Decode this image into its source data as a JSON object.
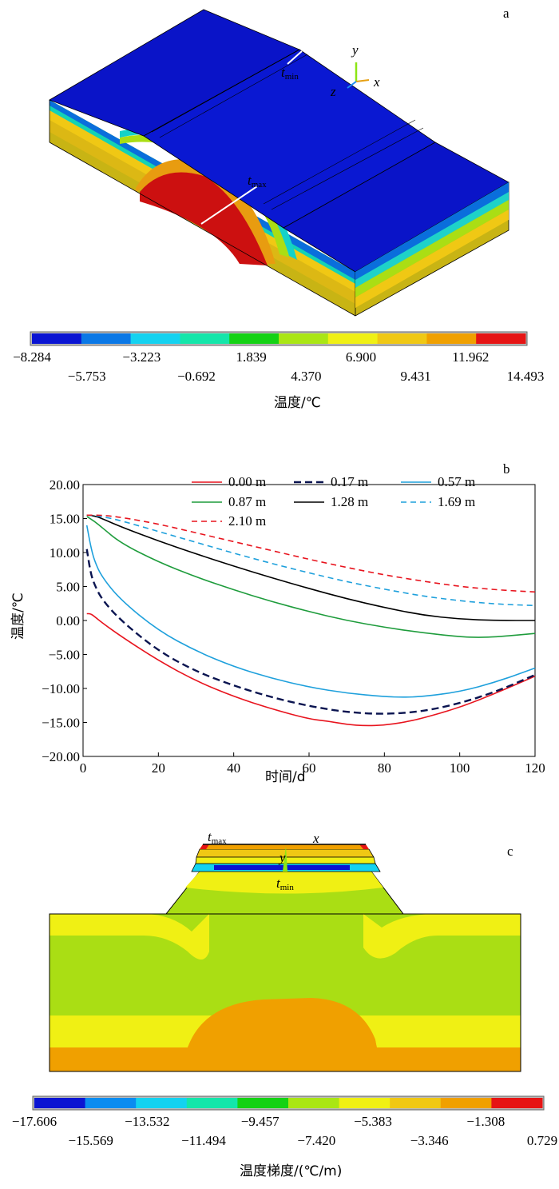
{
  "panel_a": {
    "letter": "a",
    "t_min_label": "t",
    "t_min_sub": "min",
    "t_max_label": "t",
    "t_max_sub": "max",
    "axis_y": "y",
    "axis_x": "x",
    "axis_z": "z",
    "colorbar": {
      "colors": [
        "#0a14d2",
        "#0a78e6",
        "#14d2f0",
        "#14e6aa",
        "#14d214",
        "#aae614",
        "#f0f014",
        "#f0c814",
        "#f0a000",
        "#e61414"
      ],
      "ticks_top": [
        "−8.284",
        "−3.223",
        "1.839",
        "6.900",
        "11.962"
      ],
      "ticks_bottom": [
        "−5.753",
        "−0.692",
        "4.370",
        "9.431",
        "14.493"
      ],
      "label": "温度/℃"
    }
  },
  "chart_data": {
    "type": "line",
    "letter": "b",
    "title": "",
    "xlabel": "时间/d",
    "ylabel": "温度/℃",
    "xlim": [
      0,
      120
    ],
    "ylim": [
      -20,
      20
    ],
    "x_ticks": [
      "0",
      "20",
      "40",
      "60",
      "80",
      "100",
      "120"
    ],
    "y_ticks": [
      "20.00",
      "15.00",
      "10.00",
      "5.00",
      "0.00",
      "−5.00",
      "−10.00",
      "−15.00",
      "−20.00"
    ],
    "legend_position": "top-right",
    "series": [
      {
        "name": "0.00 m",
        "color": "#e8141e",
        "dash": "solid",
        "points": [
          [
            1,
            1.0
          ],
          [
            2,
            1.0
          ],
          [
            3,
            0.6
          ],
          [
            5,
            -0.3
          ],
          [
            10,
            -2.3
          ],
          [
            20,
            -5.9
          ],
          [
            30,
            -8.9
          ],
          [
            40,
            -11.2
          ],
          [
            50,
            -13.0
          ],
          [
            60,
            -14.5
          ],
          [
            65,
            -14.8
          ],
          [
            70,
            -15.3
          ],
          [
            75,
            -15.5
          ],
          [
            80,
            -15.4
          ],
          [
            85,
            -15.0
          ],
          [
            90,
            -14.4
          ],
          [
            100,
            -12.8
          ],
          [
            110,
            -10.6
          ],
          [
            120,
            -8.2
          ]
        ]
      },
      {
        "name": "0.17 m",
        "color": "#0a1450",
        "dash": "dashed",
        "points": [
          [
            1,
            10.5
          ],
          [
            2,
            7.0
          ],
          [
            3,
            5.3
          ],
          [
            5,
            3.1
          ],
          [
            10,
            0.0
          ],
          [
            20,
            -4.5
          ],
          [
            30,
            -7.5
          ],
          [
            40,
            -9.6
          ],
          [
            50,
            -11.3
          ],
          [
            60,
            -12.6
          ],
          [
            70,
            -13.5
          ],
          [
            80,
            -13.8
          ],
          [
            90,
            -13.4
          ],
          [
            100,
            -12.2
          ],
          [
            110,
            -10.4
          ],
          [
            120,
            -8.0
          ]
        ]
      },
      {
        "name": "0.57 m",
        "color": "#1ea0dc",
        "dash": "solid",
        "points": [
          [
            1,
            14.0
          ],
          [
            2,
            11.0
          ],
          [
            3,
            8.8
          ],
          [
            5,
            6.4
          ],
          [
            10,
            3.0
          ],
          [
            20,
            -1.5
          ],
          [
            30,
            -4.5
          ],
          [
            40,
            -6.8
          ],
          [
            50,
            -8.5
          ],
          [
            60,
            -9.8
          ],
          [
            70,
            -10.7
          ],
          [
            80,
            -11.2
          ],
          [
            85,
            -11.3
          ],
          [
            90,
            -11.2
          ],
          [
            100,
            -10.5
          ],
          [
            110,
            -9.0
          ],
          [
            120,
            -7.0
          ]
        ]
      },
      {
        "name": "0.87 m",
        "color": "#1e9c3c",
        "dash": "solid",
        "points": [
          [
            1,
            15.3
          ],
          [
            3,
            14.6
          ],
          [
            5,
            13.7
          ],
          [
            10,
            11.4
          ],
          [
            20,
            8.6
          ],
          [
            30,
            6.4
          ],
          [
            40,
            4.5
          ],
          [
            50,
            2.8
          ],
          [
            60,
            1.3
          ],
          [
            70,
            0.0
          ],
          [
            80,
            -1.0
          ],
          [
            90,
            -1.8
          ],
          [
            100,
            -2.4
          ],
          [
            105,
            -2.5
          ],
          [
            110,
            -2.4
          ],
          [
            120,
            -1.9
          ]
        ]
      },
      {
        "name": "1.28 m",
        "color": "#000000",
        "dash": "solid",
        "points": [
          [
            1,
            15.5
          ],
          [
            3,
            15.4
          ],
          [
            5,
            15.0
          ],
          [
            10,
            13.8
          ],
          [
            20,
            11.7
          ],
          [
            30,
            9.8
          ],
          [
            40,
            8.0
          ],
          [
            50,
            6.3
          ],
          [
            60,
            4.7
          ],
          [
            70,
            3.2
          ],
          [
            80,
            1.9
          ],
          [
            90,
            0.8
          ],
          [
            100,
            0.2
          ],
          [
            110,
            0.0
          ],
          [
            120,
            0.0
          ]
        ]
      },
      {
        "name": "1.69 m",
        "color": "#1ea0dc",
        "dash": "dashed",
        "points": [
          [
            1,
            15.5
          ],
          [
            5,
            15.3
          ],
          [
            10,
            14.7
          ],
          [
            20,
            13.1
          ],
          [
            30,
            11.5
          ],
          [
            40,
            9.9
          ],
          [
            50,
            8.4
          ],
          [
            60,
            7.0
          ],
          [
            70,
            5.7
          ],
          [
            80,
            4.6
          ],
          [
            90,
            3.6
          ],
          [
            100,
            2.9
          ],
          [
            110,
            2.4
          ],
          [
            120,
            2.2
          ]
        ]
      },
      {
        "name": "2.10 m",
        "color": "#e8141e",
        "dash": "dashed",
        "points": [
          [
            1,
            15.5
          ],
          [
            5,
            15.5
          ],
          [
            10,
            15.2
          ],
          [
            20,
            14.2
          ],
          [
            30,
            12.9
          ],
          [
            40,
            11.6
          ],
          [
            50,
            10.3
          ],
          [
            60,
            9.0
          ],
          [
            70,
            7.8
          ],
          [
            80,
            6.7
          ],
          [
            90,
            5.8
          ],
          [
            100,
            5.0
          ],
          [
            110,
            4.5
          ],
          [
            120,
            4.2
          ]
        ]
      }
    ]
  },
  "panel_c": {
    "letter": "c",
    "axis_y": "y",
    "axis_x": "x",
    "t_max_label": "t",
    "t_max_sub": "max",
    "t_min_label": "t",
    "t_min_sub": "min",
    "colorbar": {
      "colors": [
        "#0a14d2",
        "#0a8cf0",
        "#14d2f0",
        "#14e6aa",
        "#14d214",
        "#aae614",
        "#f0f014",
        "#f0c814",
        "#f0a000",
        "#e61414"
      ],
      "ticks_top": [
        "−17.606",
        "−13.532",
        "−9.457",
        "−5.383",
        "−1.308"
      ],
      "ticks_bottom": [
        "−15.569",
        "−11.494",
        "−7.420",
        "−3.346",
        "0.729"
      ],
      "label": "温度梯度/(℃/m)"
    }
  }
}
